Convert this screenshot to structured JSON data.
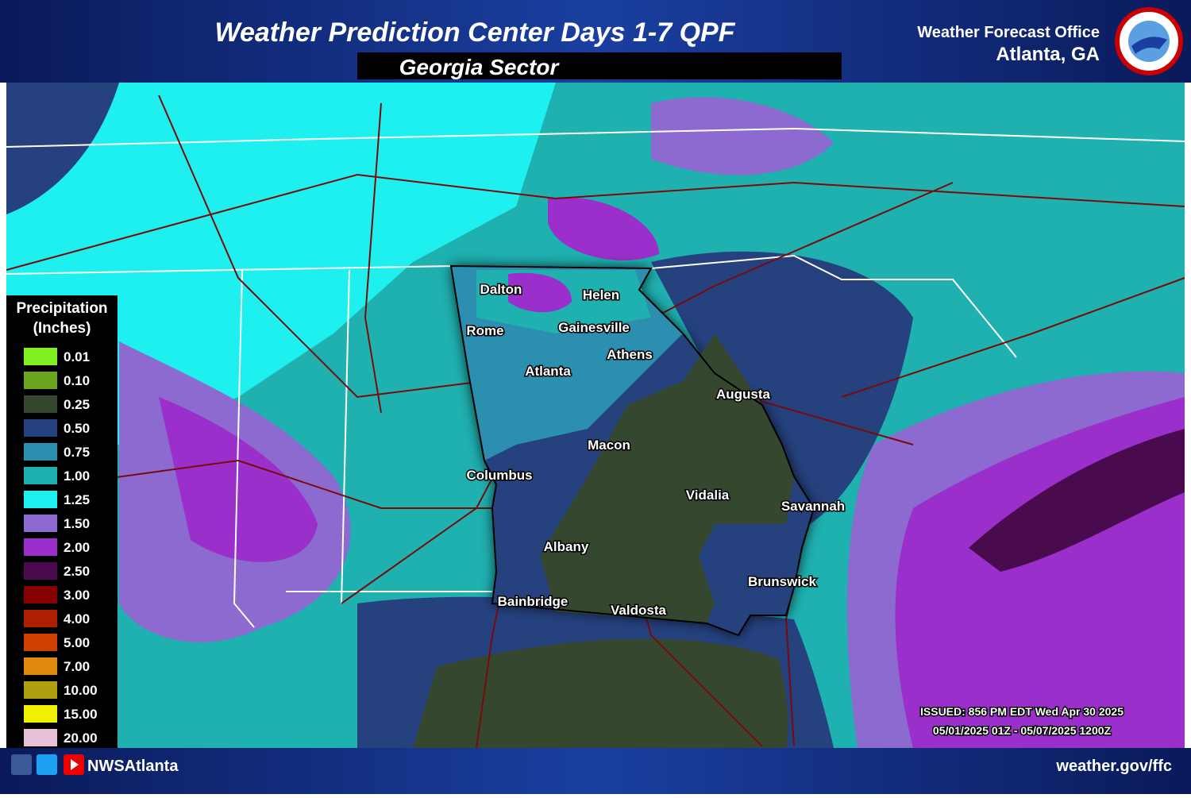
{
  "header": {
    "title": "Weather Prediction Center Days 1-7 QPF",
    "subtitle": "Georgia Sector",
    "office": "Weather Forecast Office",
    "location": "Atlanta, GA"
  },
  "legend": {
    "title": "Precipitation",
    "units": "(Inches)",
    "items": [
      {
        "label": "0.01",
        "color": "#80f020"
      },
      {
        "label": "0.10",
        "color": "#6aa61e"
      },
      {
        "label": "0.25",
        "color": "#36472f"
      },
      {
        "label": "0.50",
        "color": "#25427f"
      },
      {
        "label": "0.75",
        "color": "#2d8fb0"
      },
      {
        "label": "1.00",
        "color": "#1fb0b0"
      },
      {
        "label": "1.25",
        "color": "#1ef0f0"
      },
      {
        "label": "1.50",
        "color": "#8c6ad0"
      },
      {
        "label": "2.00",
        "color": "#9b2fcb"
      },
      {
        "label": "2.50",
        "color": "#4a0b4e"
      },
      {
        "label": "3.00",
        "color": "#850000"
      },
      {
        "label": "4.00",
        "color": "#ad1f00"
      },
      {
        "label": "5.00",
        "color": "#d04000"
      },
      {
        "label": "7.00",
        "color": "#e08a10"
      },
      {
        "label": "10.00",
        "color": "#b0a010"
      },
      {
        "label": "15.00",
        "color": "#f0f000"
      },
      {
        "label": "20.00",
        "color": "#e8c0d8"
      }
    ]
  },
  "cities": [
    "Dalton",
    "Helen",
    "Rome",
    "Gainesville",
    "Athens",
    "Atlanta",
    "Augusta",
    "Macon",
    "Columbus",
    "Vidalia",
    "Savannah",
    "Albany",
    "Brunswick",
    "Bainbridge",
    "Valdosta"
  ],
  "issued": "ISSUED: 856 PM EDT Wed Apr 30 2025",
  "valid": "05/01/2025 01Z - 05/07/2025 1200Z",
  "footer": {
    "handle": "NWSAtlanta",
    "website": "weather.gov/ffc"
  }
}
